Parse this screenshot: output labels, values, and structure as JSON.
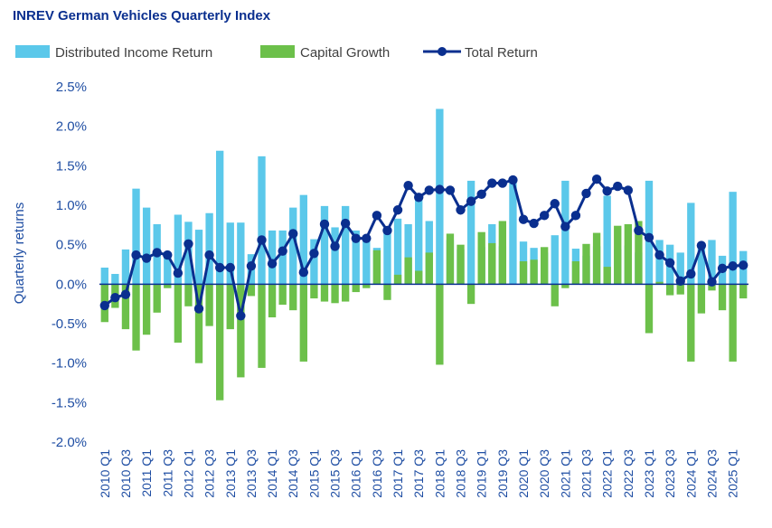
{
  "chart_data": {
    "type": "bar",
    "title": "INREV German Vehicles Quarterly Index",
    "ylabel": "Quarterly returns",
    "xlabel": "",
    "ylim": [
      -2.0,
      2.5
    ],
    "ytick_values": [
      -2.0,
      -1.5,
      -1.0,
      -0.5,
      0.0,
      0.5,
      1.0,
      1.5,
      2.0,
      2.5
    ],
    "ytick_labels": [
      "-2.0%",
      "-1.5%",
      "-1.0%",
      "-0.5%",
      "0.0%",
      "0.5%",
      "1.0%",
      "1.5%",
      "2.0%",
      "2.5%"
    ],
    "legend_position": "top",
    "categories": [
      "2010 Q1",
      "2010 Q2",
      "2010 Q3",
      "2010 Q4",
      "2011 Q1",
      "2011 Q2",
      "2011 Q3",
      "2011 Q4",
      "2012 Q1",
      "2012 Q2",
      "2012 Q3",
      "2012 Q4",
      "2013 Q1",
      "2013 Q2",
      "2013 Q3",
      "2013 Q4",
      "2014 Q1",
      "2014 Q2",
      "2014 Q3",
      "2014 Q4",
      "2015 Q1",
      "2015 Q2",
      "2015 Q3",
      "2015 Q4",
      "2016 Q1",
      "2016 Q2",
      "2016 Q3",
      "2016 Q4",
      "2017 Q1",
      "2017 Q2",
      "2017 Q3",
      "2017 Q4",
      "2018 Q1",
      "2018 Q2",
      "2018 Q3",
      "2018 Q4",
      "2019 Q1",
      "2019 Q2",
      "2019 Q3",
      "2019 Q4",
      "2020 Q1",
      "2020 Q2",
      "2020 Q3",
      "2020 Q4",
      "2021 Q1",
      "2021 Q2",
      "2021 Q3",
      "2021 Q4",
      "2022 Q1",
      "2022 Q2",
      "2022 Q3",
      "2022 Q4",
      "2023 Q1",
      "2023 Q2",
      "2023 Q3",
      "2023 Q4",
      "2024 Q1",
      "2024 Q2",
      "2024 Q3",
      "2024 Q4",
      "2025 Q1",
      "2025 Q2"
    ],
    "xtick_labels": [
      "2010 Q1",
      "2010 Q3",
      "2011 Q1",
      "2011 Q3",
      "2012 Q1",
      "2012 Q3",
      "2013 Q1",
      "2013 Q3",
      "2014 Q1",
      "2014 Q3",
      "2015 Q1",
      "2015 Q3",
      "2016 Q1",
      "2016 Q3",
      "2017 Q1",
      "2017 Q3",
      "2018 Q1",
      "2018 Q3",
      "2019 Q1",
      "2019 Q3",
      "2020 Q1",
      "2020 Q3",
      "2021 Q1",
      "2021 Q3",
      "2022 Q1",
      "2022 Q3",
      "2023 Q1",
      "2023 Q3",
      "2024 Q1",
      "2024 Q3",
      "2025 Q1"
    ],
    "series": [
      {
        "name": "Distributed Income Return",
        "type": "bar",
        "color": "#5bc8ea",
        "values": [
          0.21,
          0.13,
          0.44,
          1.21,
          0.97,
          0.76,
          0.36,
          0.88,
          0.79,
          0.69,
          0.9,
          1.69,
          0.78,
          0.78,
          0.38,
          1.62,
          0.68,
          0.68,
          0.97,
          1.13,
          0.57,
          0.99,
          0.72,
          0.99,
          0.68,
          0.6,
          0.46,
          0.68,
          0.83,
          0.76,
          1.1,
          0.8,
          2.22,
          0.56,
          0.44,
          1.31,
          0.47,
          0.76,
          0.48,
          1.3,
          0.54,
          0.46,
          0.4,
          0.62,
          1.31,
          0.45,
          0.36,
          0.48,
          1.12,
          0.44,
          0.49,
          0.4,
          1.31,
          0.56,
          0.5,
          0.4,
          1.03,
          0.5,
          0.56,
          0.36,
          1.17,
          0.42
        ]
      },
      {
        "name": "Capital Growth",
        "type": "bar",
        "color": "#6cc04a",
        "values": [
          -0.48,
          -0.3,
          -0.57,
          -0.84,
          -0.64,
          -0.36,
          -0.05,
          -0.74,
          -0.28,
          -1.0,
          -0.53,
          -1.47,
          -0.57,
          -1.18,
          -0.15,
          -1.06,
          -0.42,
          -0.26,
          -0.33,
          -0.98,
          -0.18,
          -0.22,
          -0.24,
          -0.22,
          -0.1,
          -0.05,
          0.43,
          -0.2,
          0.12,
          0.34,
          0.17,
          0.4,
          -1.02,
          0.64,
          0.5,
          -0.25,
          0.66,
          0.52,
          0.8,
          0.0,
          0.29,
          0.31,
          0.47,
          -0.28,
          -0.05,
          0.29,
          0.51,
          0.65,
          0.22,
          0.74,
          0.76,
          0.8,
          -0.62,
          0.03,
          -0.14,
          -0.13,
          -0.98,
          -0.37,
          -0.08,
          -0.33,
          -0.98,
          -0.18
        ]
      },
      {
        "name": "Total Return",
        "type": "line",
        "color": "#0a2f8f",
        "values": [
          -0.27,
          -0.17,
          -0.13,
          0.37,
          0.33,
          0.4,
          0.37,
          0.14,
          0.51,
          -0.31,
          0.37,
          0.21,
          0.21,
          -0.4,
          0.23,
          0.56,
          0.26,
          0.42,
          0.64,
          0.15,
          0.39,
          0.76,
          0.48,
          0.77,
          0.58,
          0.58,
          0.87,
          0.68,
          0.94,
          1.25,
          1.1,
          1.19,
          1.2,
          1.19,
          0.94,
          1.05,
          1.14,
          1.28,
          1.28,
          1.32,
          0.82,
          0.77,
          0.87,
          1.02,
          0.73,
          0.87,
          1.15,
          1.33,
          1.18,
          1.24,
          1.19,
          0.68,
          0.59,
          0.37,
          0.27,
          0.04,
          0.13,
          0.49,
          0.03,
          0.2,
          0.23,
          0.24
        ]
      }
    ]
  }
}
